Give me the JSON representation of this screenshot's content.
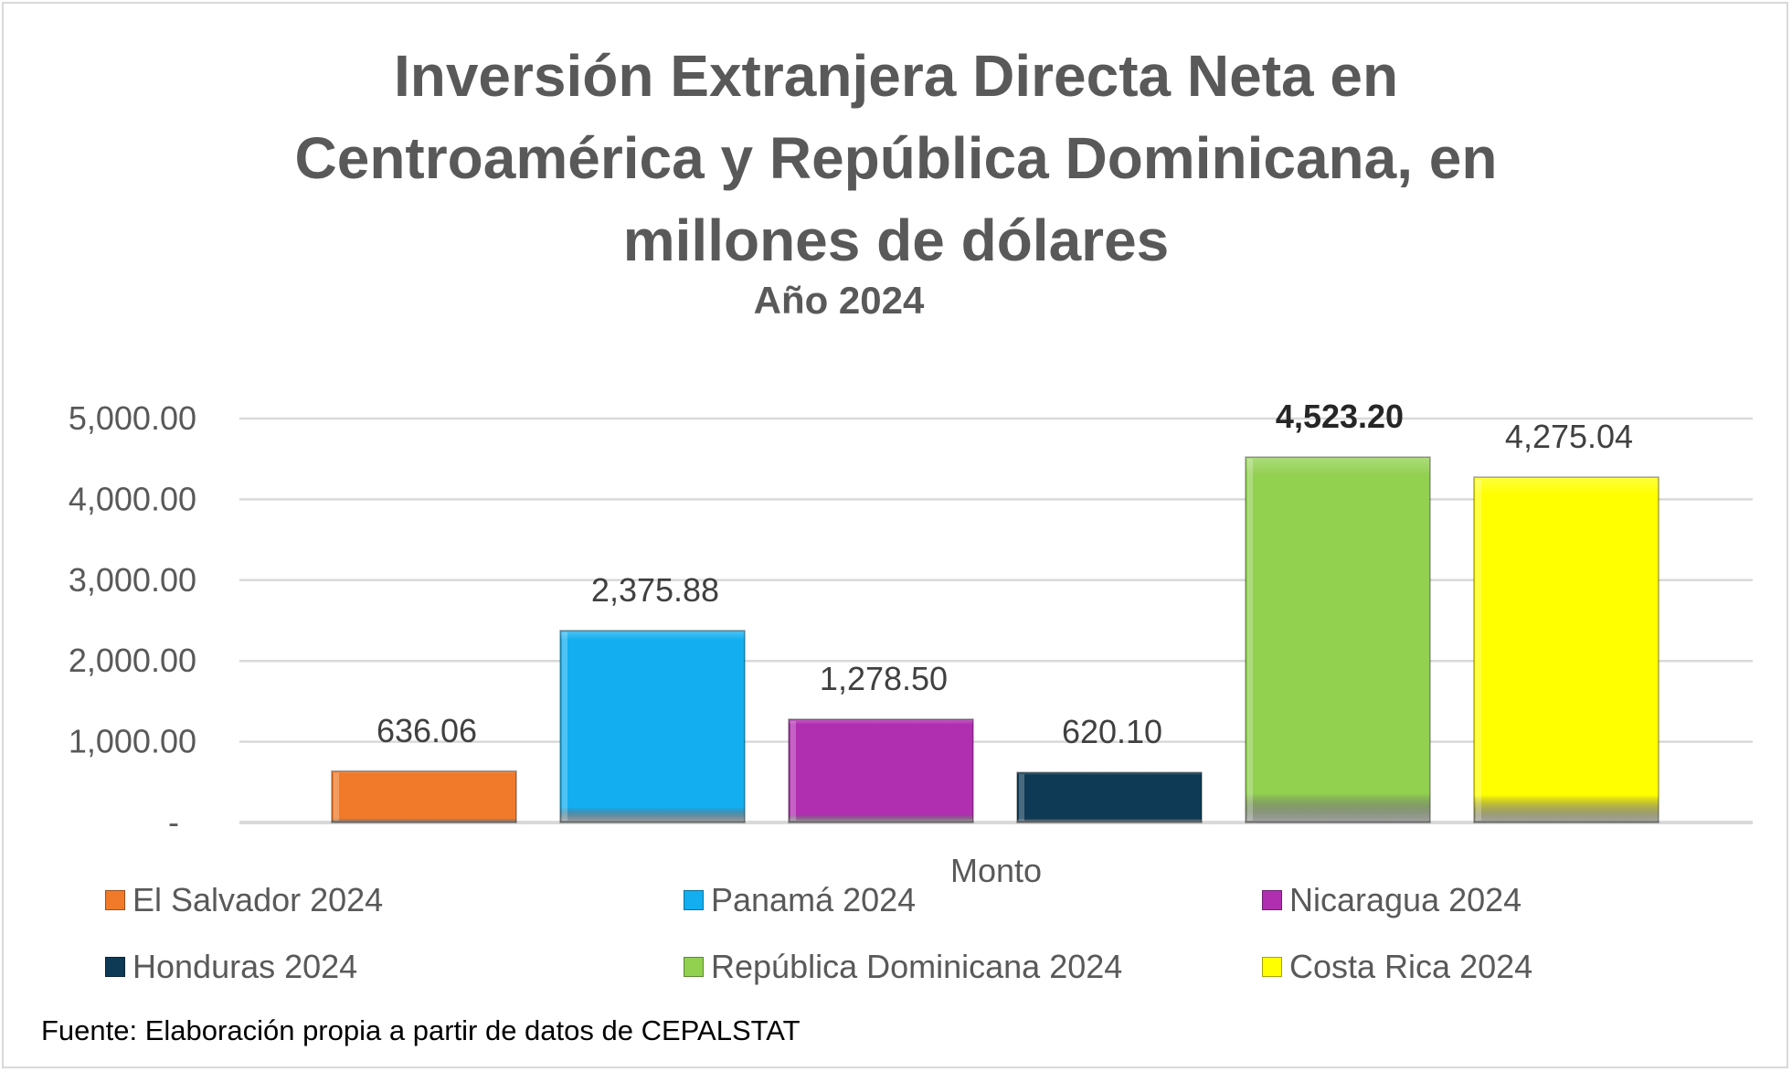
{
  "chart_data": {
    "type": "bar",
    "title_lines": [
      "Inversión Extranjera Directa Neta en",
      "Centroamérica y República Dominicana, en",
      "millones de dólares"
    ],
    "subtitle": "Año 2024",
    "xlabel": "Monto",
    "ylabel": "",
    "ylim": [
      0,
      5000
    ],
    "y_ticks": [
      0,
      1000,
      2000,
      3000,
      4000,
      5000
    ],
    "y_tick_labels": [
      "-",
      "1,000.00",
      "2,000.00",
      "3,000.00",
      "4,000.00",
      "5,000.00"
    ],
    "grid": true,
    "legend_position": "bottom",
    "series": [
      {
        "name": "El Salvador 2024",
        "value": 636.06,
        "label": "636.06",
        "color": "#f07a2a",
        "bold_label": false
      },
      {
        "name": "Panamá 2024",
        "value": 2375.88,
        "label": "2,375.88",
        "color": "#12aef0",
        "bold_label": false
      },
      {
        "name": "Nicaragua 2024",
        "value": 1278.5,
        "label": "1,278.50",
        "color": "#b02fb0",
        "bold_label": false
      },
      {
        "name": "Honduras 2024",
        "value": 620.1,
        "label": "620.10",
        "color": "#0e3a55",
        "bold_label": false
      },
      {
        "name": "República Dominicana 2024",
        "value": 4523.2,
        "label": "4,523.20",
        "color": "#92d050",
        "bold_label": true
      },
      {
        "name": "Costa Rica 2024",
        "value": 4275.04,
        "label": "4,275.04",
        "color": "#ffff00",
        "bold_label": false
      }
    ]
  },
  "source_note": "Fuente: Elaboración propia a partir de datos de CEPALSTAT"
}
